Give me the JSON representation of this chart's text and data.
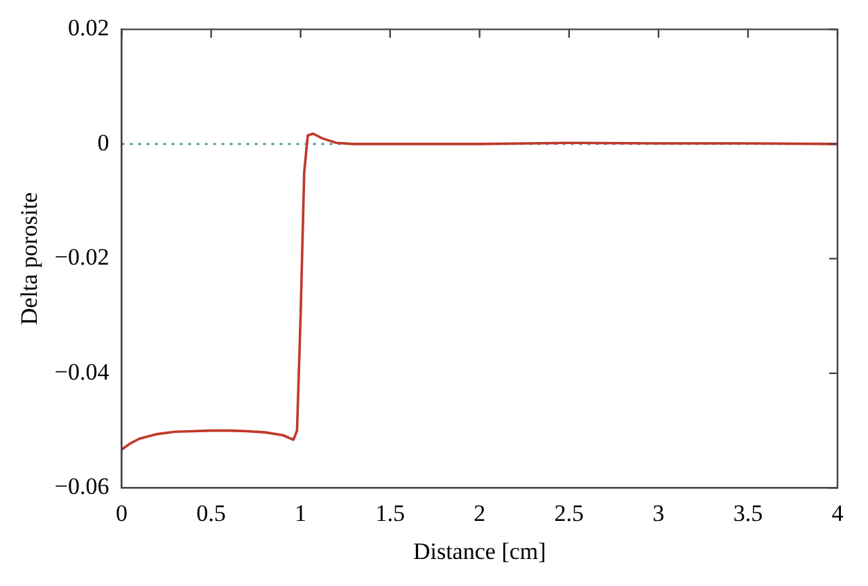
{
  "chart_data": {
    "type": "line",
    "xlabel": "Distance [cm]",
    "ylabel": "Delta porosite",
    "x": [
      0,
      0.05,
      0.1,
      0.2,
      0.3,
      0.4,
      0.5,
      0.6,
      0.7,
      0.8,
      0.9,
      0.96,
      0.98,
      1.0,
      1.02,
      1.04,
      1.07,
      1.12,
      1.2,
      1.3,
      1.5,
      2,
      2.5,
      3,
      3.5,
      4
    ],
    "series": [
      {
        "color": "#c0392b",
        "values": [
          -0.0533,
          -0.0522,
          -0.0514,
          -0.0506,
          -0.0502,
          -0.0501,
          -0.05,
          -0.05,
          -0.0501,
          -0.0503,
          -0.0508,
          -0.0516,
          -0.05,
          -0.03,
          -0.005,
          0.0015,
          0.0018,
          0.001,
          0.0002,
          0,
          0,
          0,
          0.0002,
          0.0001,
          0.0001,
          0
        ]
      }
    ],
    "xlim": [
      0,
      4
    ],
    "xticks": [
      0,
      0.5,
      1,
      1.5,
      2,
      2.5,
      3,
      3.5,
      4
    ],
    "ylim": [
      -0.06,
      0.02
    ],
    "yticks": [
      {
        "value": -0.06,
        "label": "−0.06"
      },
      {
        "value": -0.04,
        "label": "−0.04"
      },
      {
        "value": -0.02,
        "label": "−0.02"
      },
      0,
      0.02
    ],
    "ref_lines": [
      {
        "axis": "y",
        "value": 0,
        "color": "#4a90a4",
        "line_style": "dotted"
      }
    ],
    "grid": false,
    "legend": false,
    "marker": "none",
    "line_style": "solid"
  }
}
